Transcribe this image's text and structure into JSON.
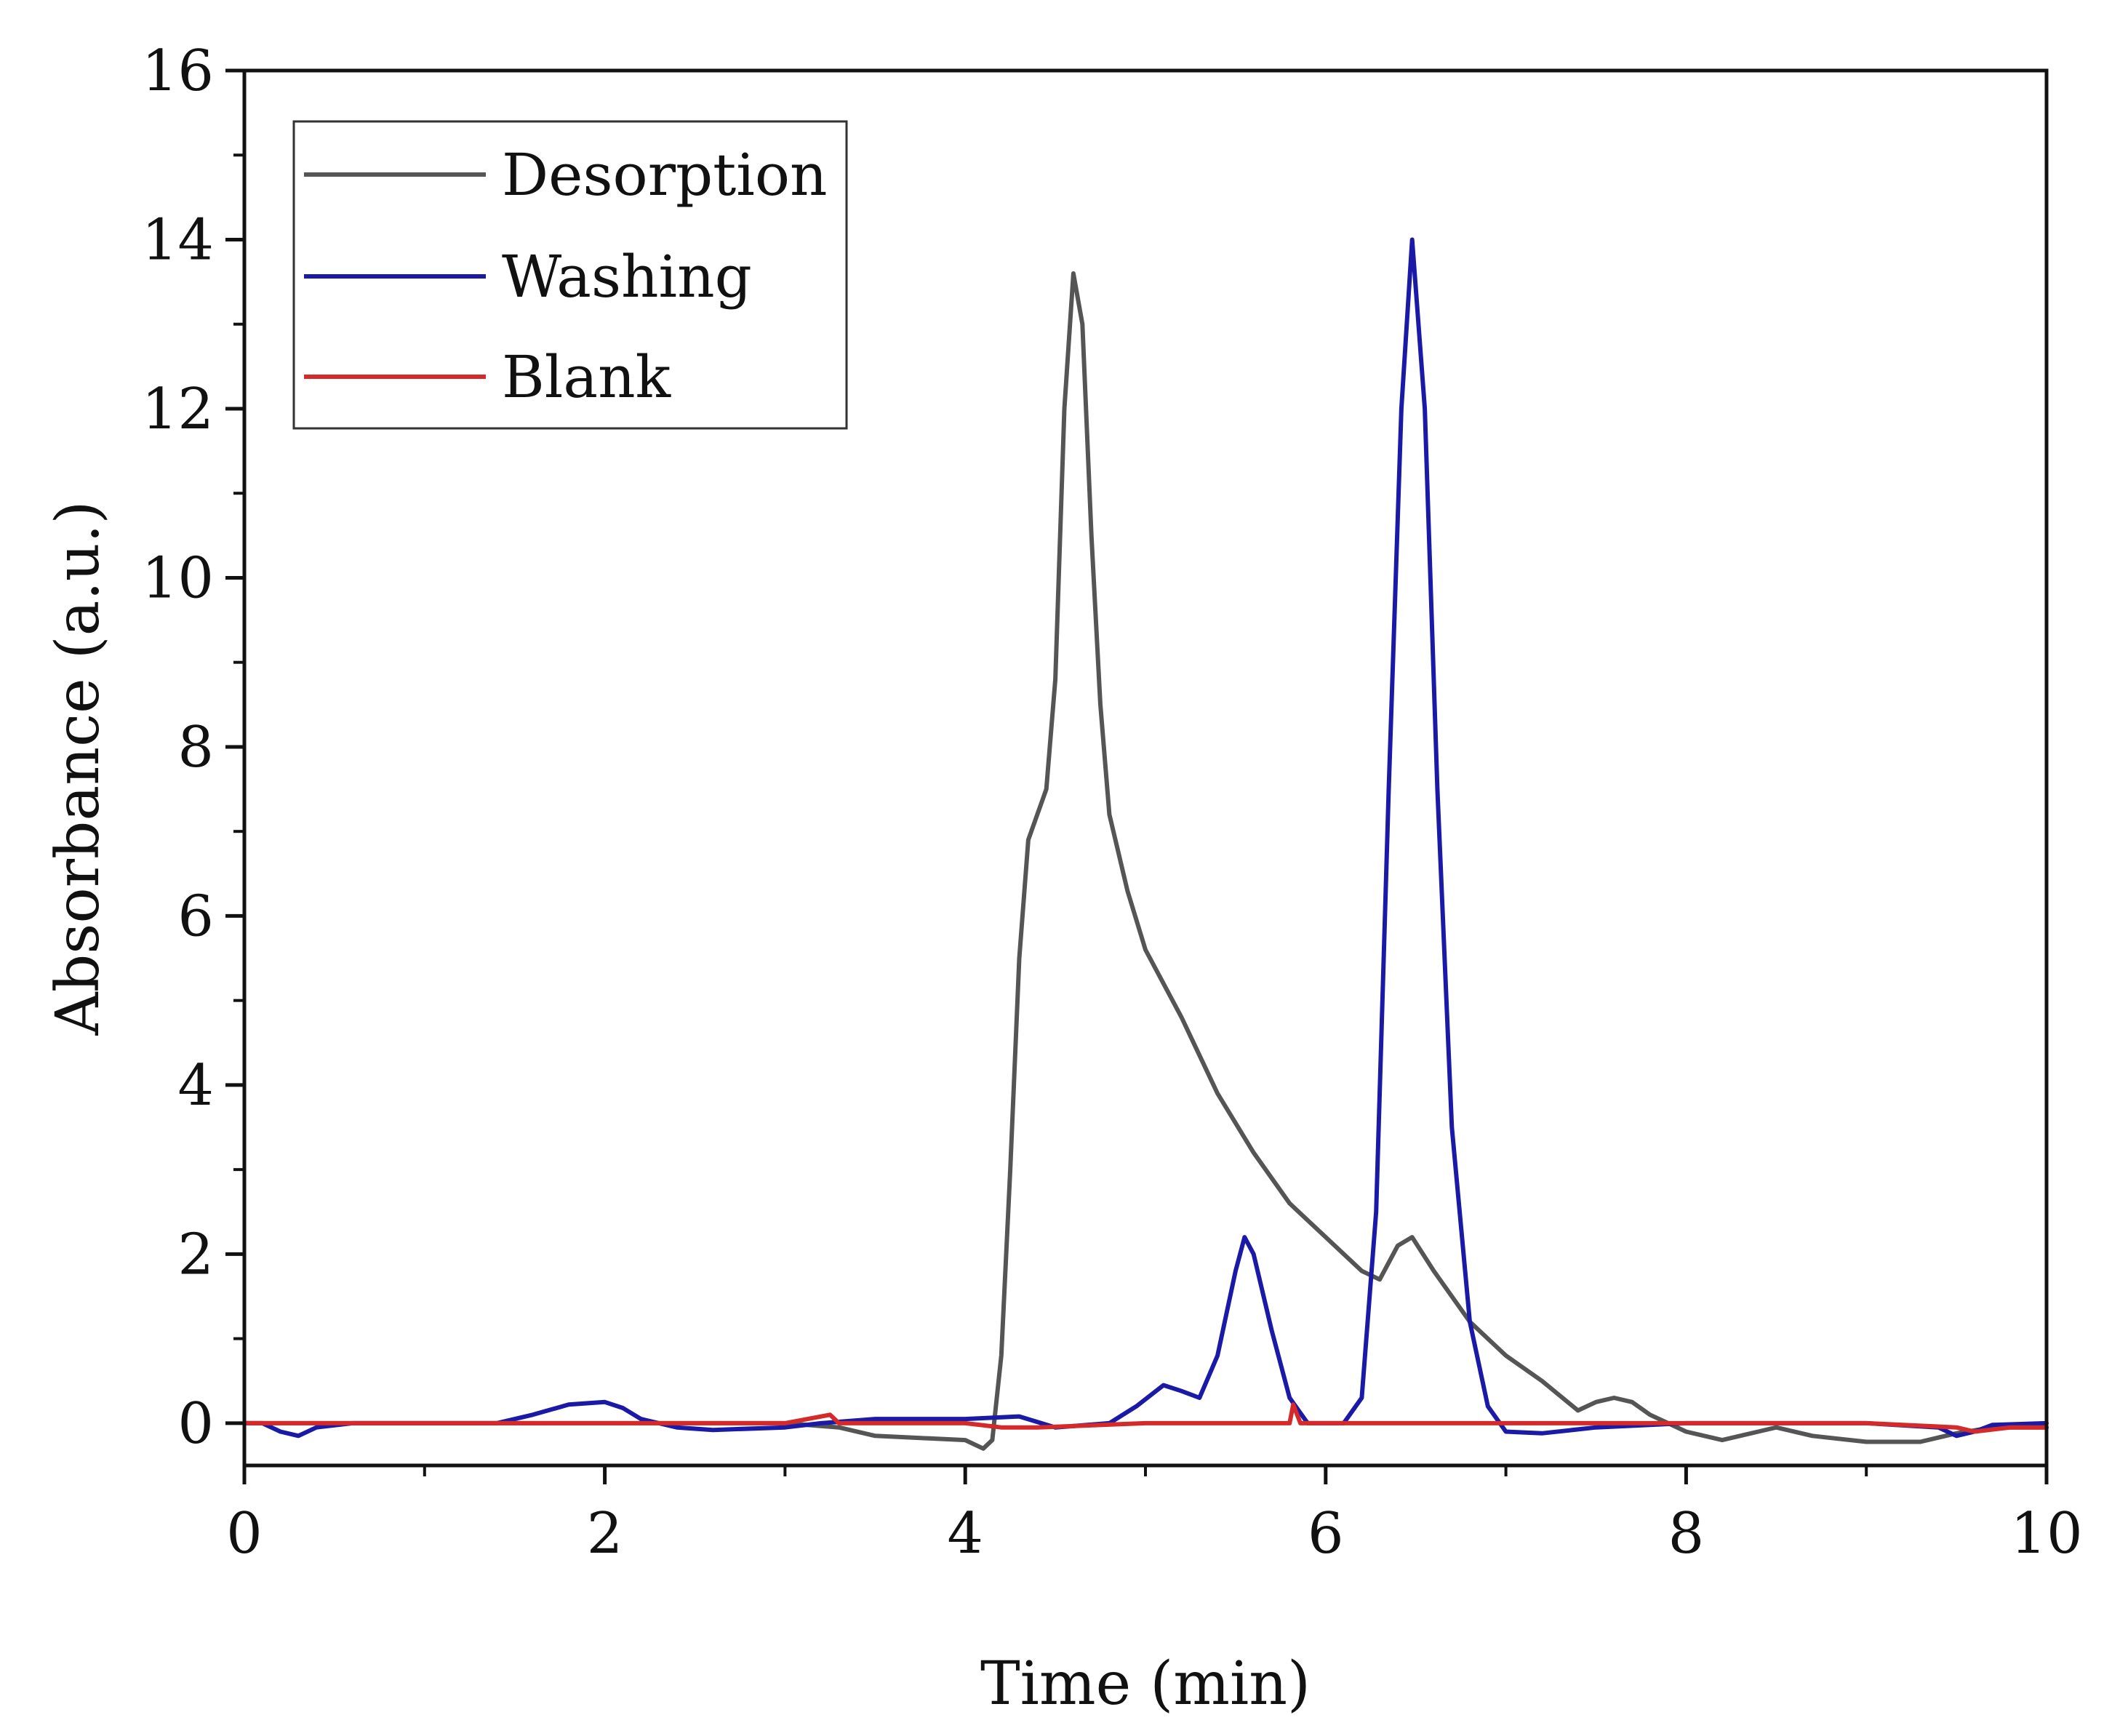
{
  "chart_data": {
    "type": "line",
    "title": "",
    "xlabel": "Time (min)",
    "ylabel": "Absorbance (a.u.)",
    "xlim": [
      0,
      10
    ],
    "ylim": [
      -0.5,
      16
    ],
    "xticks": [
      0,
      2,
      4,
      6,
      8,
      10
    ],
    "xtick_labels": [
      "0",
      "2",
      "4",
      "6",
      "8",
      "10"
    ],
    "yticks": [
      0,
      2,
      4,
      6,
      8,
      10,
      12,
      14,
      16
    ],
    "ytick_labels": [
      "0",
      "2",
      "4",
      "6",
      "8",
      "10",
      "12",
      "14",
      "16"
    ],
    "grid": false,
    "legend_position": "top-left",
    "series": [
      {
        "name": "Desorption",
        "color": "#555555",
        "points": [
          [
            0,
            0.0
          ],
          [
            0.5,
            0.0
          ],
          [
            1.0,
            0.0
          ],
          [
            1.5,
            0.0
          ],
          [
            2.0,
            0.0
          ],
          [
            2.5,
            0.0
          ],
          [
            3.0,
            0.0
          ],
          [
            3.3,
            -0.05
          ],
          [
            3.5,
            -0.15
          ],
          [
            3.8,
            -0.18
          ],
          [
            4.0,
            -0.2
          ],
          [
            4.1,
            -0.3
          ],
          [
            4.15,
            -0.2
          ],
          [
            4.2,
            0.8
          ],
          [
            4.25,
            3.0
          ],
          [
            4.3,
            5.5
          ],
          [
            4.35,
            6.9
          ],
          [
            4.4,
            7.2
          ],
          [
            4.45,
            7.5
          ],
          [
            4.5,
            8.8
          ],
          [
            4.55,
            12.0
          ],
          [
            4.6,
            13.6
          ],
          [
            4.65,
            13.0
          ],
          [
            4.7,
            10.5
          ],
          [
            4.75,
            8.5
          ],
          [
            4.8,
            7.2
          ],
          [
            4.9,
            6.3
          ],
          [
            5.0,
            5.6
          ],
          [
            5.2,
            4.8
          ],
          [
            5.4,
            3.9
          ],
          [
            5.6,
            3.2
          ],
          [
            5.8,
            2.6
          ],
          [
            6.0,
            2.2
          ],
          [
            6.2,
            1.8
          ],
          [
            6.3,
            1.7
          ],
          [
            6.4,
            2.1
          ],
          [
            6.48,
            2.2
          ],
          [
            6.6,
            1.8
          ],
          [
            6.8,
            1.2
          ],
          [
            7.0,
            0.8
          ],
          [
            7.2,
            0.5
          ],
          [
            7.4,
            0.15
          ],
          [
            7.5,
            0.25
          ],
          [
            7.6,
            0.3
          ],
          [
            7.7,
            0.25
          ],
          [
            7.8,
            0.1
          ],
          [
            8.0,
            -0.1
          ],
          [
            8.2,
            -0.2
          ],
          [
            8.4,
            -0.1
          ],
          [
            8.5,
            -0.05
          ],
          [
            8.7,
            -0.15
          ],
          [
            9.0,
            -0.22
          ],
          [
            9.3,
            -0.22
          ],
          [
            9.5,
            -0.12
          ],
          [
            9.7,
            -0.05
          ],
          [
            10.0,
            -0.05
          ]
        ]
      },
      {
        "name": "Washing",
        "color": "#1a1aa6",
        "points": [
          [
            0,
            0.0
          ],
          [
            0.1,
            0.0
          ],
          [
            0.2,
            -0.1
          ],
          [
            0.3,
            -0.15
          ],
          [
            0.4,
            -0.05
          ],
          [
            0.6,
            0.0
          ],
          [
            1.0,
            0.0
          ],
          [
            1.4,
            0.0
          ],
          [
            1.6,
            0.1
          ],
          [
            1.8,
            0.22
          ],
          [
            2.0,
            0.25
          ],
          [
            2.1,
            0.18
          ],
          [
            2.2,
            0.05
          ],
          [
            2.4,
            -0.05
          ],
          [
            2.6,
            -0.08
          ],
          [
            3.0,
            -0.05
          ],
          [
            3.2,
            0.0
          ],
          [
            3.5,
            0.05
          ],
          [
            4.0,
            0.05
          ],
          [
            4.3,
            0.08
          ],
          [
            4.5,
            -0.05
          ],
          [
            4.8,
            0.0
          ],
          [
            4.95,
            0.2
          ],
          [
            5.1,
            0.45
          ],
          [
            5.2,
            0.38
          ],
          [
            5.3,
            0.3
          ],
          [
            5.4,
            0.8
          ],
          [
            5.5,
            1.8
          ],
          [
            5.55,
            2.2
          ],
          [
            5.6,
            2.0
          ],
          [
            5.7,
            1.1
          ],
          [
            5.8,
            0.3
          ],
          [
            5.9,
            0.0
          ],
          [
            6.1,
            0.0
          ],
          [
            6.2,
            0.3
          ],
          [
            6.28,
            2.5
          ],
          [
            6.35,
            7.5
          ],
          [
            6.42,
            12.0
          ],
          [
            6.48,
            14.0
          ],
          [
            6.55,
            12.0
          ],
          [
            6.62,
            7.5
          ],
          [
            6.7,
            3.5
          ],
          [
            6.8,
            1.2
          ],
          [
            6.9,
            0.2
          ],
          [
            7.0,
            -0.1
          ],
          [
            7.2,
            -0.12
          ],
          [
            7.5,
            -0.05
          ],
          [
            8.0,
            0.0
          ],
          [
            9.0,
            0.0
          ],
          [
            9.4,
            -0.05
          ],
          [
            9.5,
            -0.15
          ],
          [
            9.6,
            -0.1
          ],
          [
            9.7,
            -0.02
          ],
          [
            10.0,
            0.0
          ]
        ]
      },
      {
        "name": "Blank",
        "color": "#d42a2a",
        "points": [
          [
            0,
            0.0
          ],
          [
            1.0,
            0.0
          ],
          [
            2.0,
            0.0
          ],
          [
            3.0,
            0.0
          ],
          [
            3.25,
            0.1
          ],
          [
            3.3,
            0.0
          ],
          [
            4.0,
            0.0
          ],
          [
            4.2,
            -0.05
          ],
          [
            4.4,
            -0.05
          ],
          [
            5.0,
            0.0
          ],
          [
            5.8,
            0.0
          ],
          [
            5.82,
            0.22
          ],
          [
            5.86,
            0.0
          ],
          [
            6.0,
            0.0
          ],
          [
            7.0,
            0.0
          ],
          [
            8.0,
            0.0
          ],
          [
            9.0,
            0.0
          ],
          [
            9.5,
            -0.05
          ],
          [
            9.6,
            -0.1
          ],
          [
            9.8,
            -0.05
          ],
          [
            10.0,
            -0.05
          ]
        ]
      }
    ]
  }
}
